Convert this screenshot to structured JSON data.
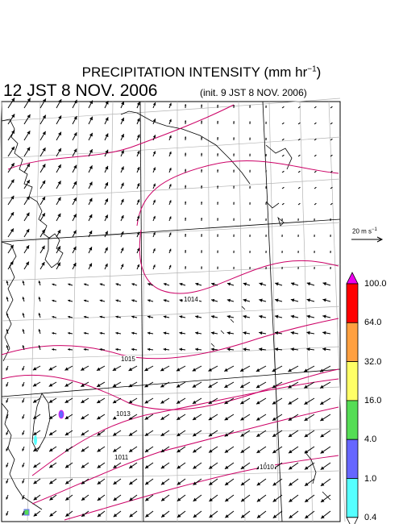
{
  "title": {
    "text": "PRECIPITATION INTENSITY (mm hr",
    "exponent": "−1",
    "close": ")"
  },
  "valid_time": "12 JST 8 NOV. 2006",
  "init_time": "(init. 9 JST 8 NOV. 2006)",
  "wind_scale": {
    "label": "20 m s",
    "exponent": "−1"
  },
  "colorbar": {
    "levels": [
      "100.0",
      "64.0",
      "32.0",
      "16.0",
      "4.0",
      "1.0",
      "0.4"
    ],
    "colors": [
      "#ee00ee",
      "#ff0000",
      "#ffa040",
      "#ffff66",
      "#55dd55",
      "#6666ff",
      "#55ffff"
    ]
  },
  "isobar_labels": [
    "1014",
    "1015",
    "1013",
    "1011",
    "1010"
  ],
  "colors": {
    "isobar": "#cc0066",
    "grid": "#b4b4b4",
    "coast": "#000000",
    "arrow": "#000000"
  }
}
